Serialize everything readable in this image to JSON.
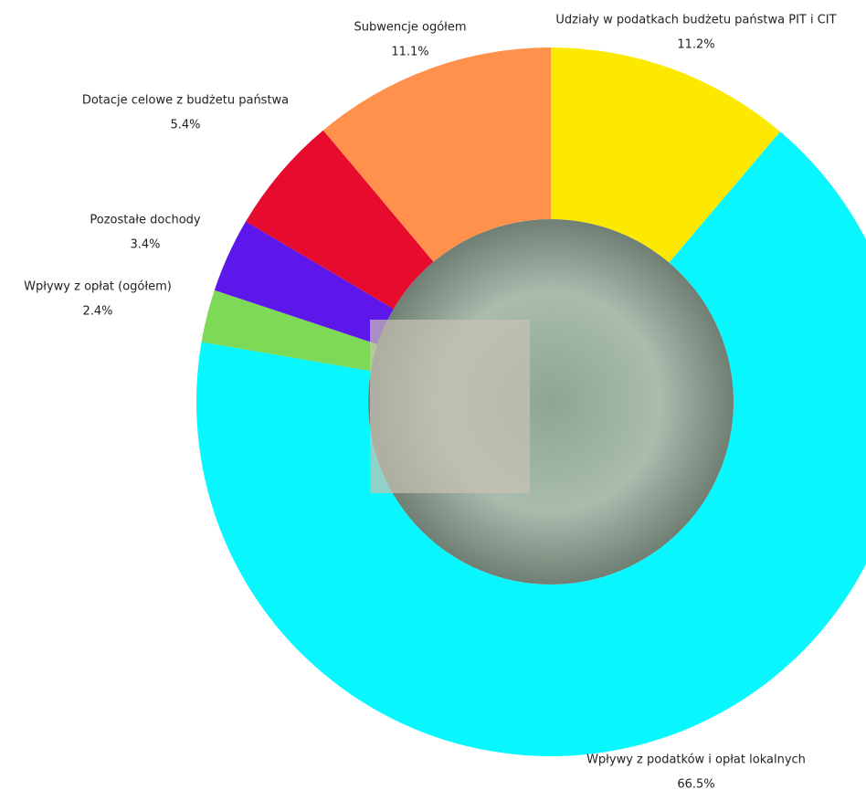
{
  "chart_data": {
    "type": "donut",
    "categories": [
      "Udziały w podatkach budżetu państwa PIT i CIT",
      "Wpływy z podatków i opłat lokalnych",
      "Wpływy z opłat (ogółem)",
      "Pozostałe dochody",
      "Dotacje celowe z budżetu państwa",
      "Subwencje ogółem"
    ],
    "values": [
      11.2,
      66.5,
      2.4,
      3.4,
      5.4,
      11.1
    ],
    "value_labels": [
      "11.2%",
      "66.5%",
      "2.4%",
      "3.4%",
      "5.4%",
      "11.1%"
    ],
    "colors": [
      "#fde900",
      "#08f7fe",
      "#7ed957",
      "#5e17eb",
      "#e70b2e",
      "#ff914d"
    ]
  }
}
